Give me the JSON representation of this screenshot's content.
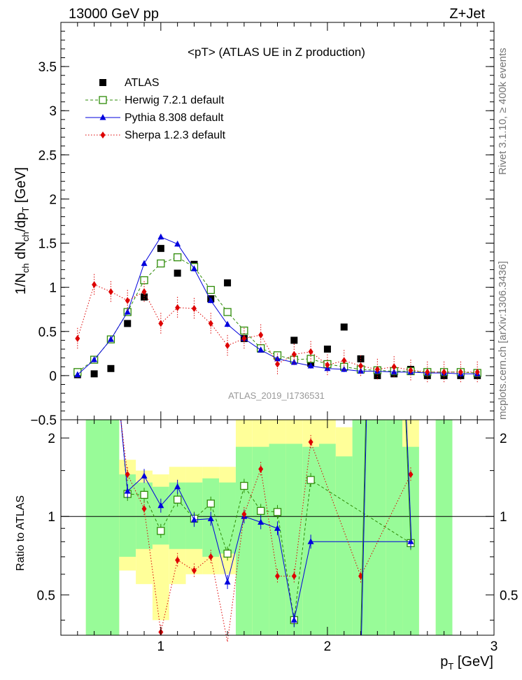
{
  "header": {
    "left": "13000 GeV pp",
    "right": "Z+Jet"
  },
  "side_text": {
    "rivet": "Rivet 3.1.10, ≥ 400k events",
    "url": "mcplots.cern.ch [arXiv:1306.3436]"
  },
  "chart_data": [
    {
      "type": "scatter",
      "title": "<pT> (ATLAS UE in Z production)",
      "watermark": "ATLAS_2019_I1736531",
      "ylabel": "1/N_ch dN_ch/dp_T [GeV]",
      "xlim": [
        0.4,
        3.0
      ],
      "ylim": [
        -0.5,
        4.0
      ],
      "yticks": [
        "−0.5",
        "0",
        "0.5",
        "1",
        "1.5",
        "2",
        "2.5",
        "3",
        "3.5"
      ],
      "legend_position": "top-left",
      "series": [
        {
          "name": "ATLAS",
          "color": "#000000",
          "marker": "filled-square",
          "x": [
            0.5,
            0.6,
            0.7,
            0.8,
            0.9,
            1.0,
            1.1,
            1.2,
            1.3,
            1.4,
            1.5,
            1.6,
            1.7,
            1.8,
            1.9,
            2.0,
            2.1,
            2.2,
            2.3,
            2.4,
            2.5,
            2.6,
            2.7,
            2.8,
            2.9
          ],
          "y": [
            0.01,
            0.02,
            0.08,
            0.59,
            0.89,
            1.44,
            1.16,
            1.26,
            0.87,
            1.05,
            0.42,
            0.3,
            0.22,
            0.4,
            0.14,
            0.3,
            0.55,
            0.19,
            0.0,
            0.02,
            0.07,
            0.0,
            0.0,
            0.0,
            0.0
          ]
        },
        {
          "name": "Herwig 7.2.1 default",
          "color": "#2e8b07",
          "marker": "open-square",
          "line": "dashed",
          "x": [
            0.5,
            0.6,
            0.7,
            0.8,
            0.9,
            1.0,
            1.1,
            1.2,
            1.3,
            1.4,
            1.5,
            1.6,
            1.7,
            1.8,
            1.9,
            2.0,
            2.1,
            2.2,
            2.3,
            2.4,
            2.5,
            2.6,
            2.7,
            2.8,
            2.9
          ],
          "y": [
            0.04,
            0.18,
            0.41,
            0.72,
            1.08,
            1.27,
            1.34,
            1.23,
            0.97,
            0.72,
            0.51,
            0.31,
            0.23,
            0.18,
            0.19,
            0.13,
            0.1,
            0.07,
            0.06,
            0.05,
            0.05,
            0.04,
            0.04,
            0.04,
            0.03
          ]
        },
        {
          "name": "Pythia 8.308 default",
          "color": "#0000dd",
          "marker": "filled-triangle",
          "line": "solid",
          "x": [
            0.5,
            0.6,
            0.7,
            0.8,
            0.9,
            1.0,
            1.1,
            1.2,
            1.3,
            1.4,
            1.5,
            1.6,
            1.7,
            1.8,
            1.9,
            2.0,
            2.1,
            2.2,
            2.3,
            2.4,
            2.5,
            2.6,
            2.7,
            2.8,
            2.9
          ],
          "y": [
            0.01,
            0.18,
            0.41,
            0.72,
            1.27,
            1.57,
            1.49,
            1.21,
            0.85,
            0.58,
            0.42,
            0.29,
            0.19,
            0.15,
            0.11,
            0.08,
            0.07,
            0.05,
            0.05,
            0.04,
            0.04,
            0.03,
            0.03,
            0.02,
            0.02
          ]
        },
        {
          "name": "Sherpa 1.2.3 default",
          "color": "#dd0000",
          "marker": "filled-diamond",
          "line": "dotted",
          "x": [
            0.5,
            0.6,
            0.7,
            0.8,
            0.9,
            1.0,
            1.1,
            1.2,
            1.3,
            1.4,
            1.5,
            1.6,
            1.7,
            1.8,
            1.9,
            2.0,
            2.1,
            2.2,
            2.3,
            2.4,
            2.5,
            2.6,
            2.7,
            2.8,
            2.9
          ],
          "y": [
            0.42,
            1.03,
            0.95,
            0.85,
            0.95,
            0.59,
            0.77,
            0.76,
            0.59,
            0.34,
            0.42,
            0.46,
            0.13,
            0.24,
            0.27,
            0.12,
            0.17,
            0.11,
            0.07,
            0.1,
            0.06,
            0.04,
            0.04,
            0.04,
            0.04
          ]
        }
      ]
    },
    {
      "type": "line",
      "ylabel": "Ratio to ATLAS",
      "xlabel": "p_T [GeV]",
      "xlim": [
        0.4,
        3.0
      ],
      "xticks": [
        "1",
        "2",
        "3"
      ],
      "ylim": [
        0.35,
        2.35
      ],
      "yscale": "log",
      "yticks": [
        "0.5",
        "1",
        "2"
      ],
      "series": [
        {
          "name": "Herwig 7.2.1 default",
          "color": "#2e8b07",
          "x": [
            0.8,
            0.9,
            1.0,
            1.1,
            1.2,
            1.3,
            1.4,
            1.5,
            1.6,
            1.7,
            1.8,
            1.9,
            2.5
          ],
          "y": [
            1.22,
            1.21,
            0.88,
            1.16,
            0.98,
            1.12,
            0.72,
            1.31,
            1.05,
            1.04,
            0.4,
            1.38,
            0.79
          ]
        },
        {
          "name": "Pythia 8.308 default",
          "color": "#0000dd",
          "x": [
            0.8,
            0.9,
            1.0,
            1.1,
            1.2,
            1.3,
            1.4,
            1.5,
            1.6,
            1.7,
            1.8,
            1.9,
            2.5
          ],
          "y": [
            1.25,
            1.43,
            1.1,
            1.3,
            0.97,
            0.98,
            0.56,
            1.0,
            0.95,
            0.9,
            0.4,
            0.8,
            0.8
          ]
        },
        {
          "name": "Sherpa 1.2.3 default",
          "color": "#dd0000",
          "x": [
            0.8,
            0.9,
            1.0,
            1.1,
            1.2,
            1.3,
            1.4,
            1.5,
            1.6,
            1.7,
            1.8,
            1.9,
            2.2,
            2.5
          ],
          "y": [
            1.45,
            1.07,
            0.36,
            0.68,
            0.62,
            0.7,
            0.33,
            1.02,
            1.52,
            0.59,
            0.59,
            1.93,
            0.59,
            1.45
          ]
        }
      ]
    }
  ]
}
